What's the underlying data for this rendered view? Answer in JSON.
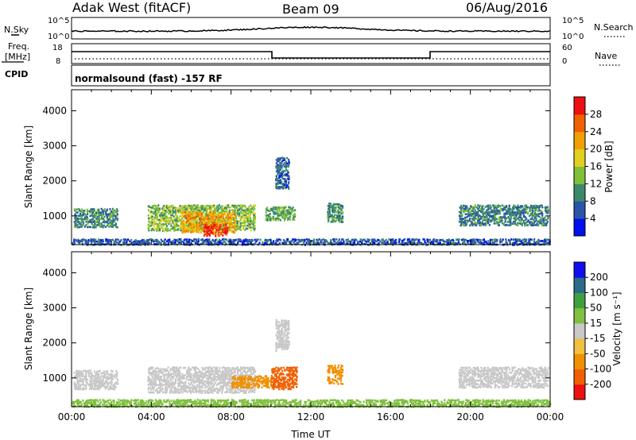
{
  "header": {
    "station": "Adak West (fitACF)",
    "beam": "Beam 09",
    "date": "06/Aug/2016"
  },
  "strip_labels": {
    "nsky": "N.Sky",
    "nsky_ticks": [
      "10^5",
      "10^0"
    ],
    "nsearch": "N.Search",
    "nsearch_ticks": [
      "10^5",
      "10^0"
    ],
    "freq": "Freq.",
    "freq_unit": "[MHz]",
    "freq_ticks": [
      "18",
      "8"
    ],
    "nave": "Nave",
    "nave_ticks": [
      "60",
      "0"
    ],
    "cpid": "CPID",
    "cpid_text": "normalsound (fast) -157 RF"
  },
  "colors": {
    "power_scale": [
      "#0010ee",
      "#2a55a8",
      "#3a8a6a",
      "#7fbf3a",
      "#e0d020",
      "#f0a000",
      "#f06000",
      "#ee1010"
    ],
    "velocity_scale": [
      "#ee1010",
      "#f06000",
      "#f09000",
      "#f0c040",
      "#c8c8c8",
      "#80c040",
      "#40a040",
      "#2a6a8a",
      "#1010ee"
    ],
    "axis": "#000000"
  },
  "chart_data": [
    {
      "type": "heatmap",
      "name": "power",
      "xlabel": "",
      "ylabel": "Slant Range [km]",
      "x_ticks": [
        "00:00",
        "04:00",
        "08:00",
        "12:00",
        "16:00",
        "20:00",
        "00:00"
      ],
      "xlim_hours": [
        0,
        24
      ],
      "ylim_km": [
        180,
        4600
      ],
      "y_ticks": [
        1000,
        2000,
        3000,
        4000
      ],
      "colorbar_label": "Power [dB]",
      "colorbar_ticks": [
        4,
        8,
        12,
        16,
        20,
        24,
        28
      ],
      "colorbar_range": [
        0,
        32
      ],
      "regions": [
        {
          "t0": 0.1,
          "t1": 2.3,
          "r0": 700,
          "r1": 1250,
          "level": 10
        },
        {
          "t0": 3.8,
          "t1": 9.2,
          "r0": 600,
          "r1": 1350,
          "level": 14
        },
        {
          "t0": 5.5,
          "t1": 8.2,
          "r0": 550,
          "r1": 1150,
          "level": 22
        },
        {
          "t0": 6.6,
          "t1": 7.8,
          "r0": 450,
          "r1": 800,
          "level": 28
        },
        {
          "t0": 9.7,
          "t1": 11.2,
          "r0": 900,
          "r1": 1300,
          "level": 12
        },
        {
          "t0": 10.2,
          "t1": 10.9,
          "r0": 1800,
          "r1": 2700,
          "level": 7
        },
        {
          "t0": 12.8,
          "t1": 13.6,
          "r0": 850,
          "r1": 1400,
          "level": 10
        },
        {
          "t0": 19.4,
          "t1": 23.9,
          "r0": 750,
          "r1": 1350,
          "level": 9
        },
        {
          "t0": 0.0,
          "t1": 24.0,
          "r0": 200,
          "r1": 380,
          "level": 6
        }
      ]
    },
    {
      "type": "heatmap",
      "name": "velocity",
      "xlabel": "Time UT",
      "ylabel": "Slant Range [km]",
      "x_ticks": [
        "00:00",
        "04:00",
        "08:00",
        "12:00",
        "16:00",
        "20:00",
        "00:00"
      ],
      "xlim_hours": [
        0,
        24
      ],
      "ylim_km": [
        180,
        4600
      ],
      "y_ticks": [
        1000,
        2000,
        3000,
        4000
      ],
      "colorbar_label": "Velocity [m s⁻¹]",
      "colorbar_ticks": [
        "-200",
        "-100",
        "-50",
        "-15",
        "15",
        "50",
        "100",
        "200"
      ],
      "regions": [
        {
          "t0": 0.1,
          "t1": 2.3,
          "r0": 700,
          "r1": 1250,
          "level": 0
        },
        {
          "t0": 3.8,
          "t1": 9.2,
          "r0": 600,
          "r1": 1350,
          "level": 0
        },
        {
          "t0": 8.0,
          "t1": 10.0,
          "r0": 750,
          "r1": 1100,
          "level": -60
        },
        {
          "t0": 10.0,
          "t1": 11.3,
          "r0": 700,
          "r1": 1350,
          "level": -180
        },
        {
          "t0": 12.8,
          "t1": 13.6,
          "r0": 850,
          "r1": 1400,
          "level": -80
        },
        {
          "t0": 19.4,
          "t1": 23.9,
          "r0": 750,
          "r1": 1350,
          "level": 0
        },
        {
          "t0": 0.0,
          "t1": 24.0,
          "r0": 200,
          "r1": 420,
          "level": 30
        },
        {
          "t0": 10.2,
          "t1": 10.9,
          "r0": 1800,
          "r1": 2700,
          "level": 0
        }
      ]
    }
  ]
}
